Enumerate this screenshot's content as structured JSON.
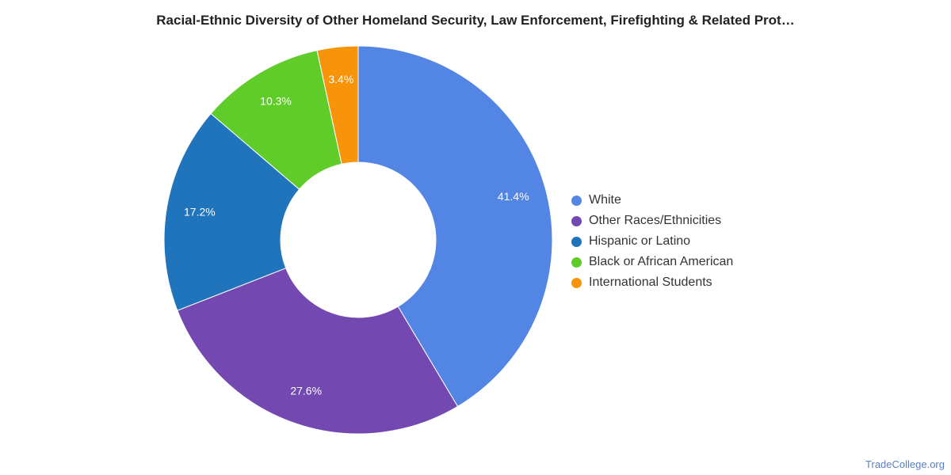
{
  "chart_data": {
    "type": "pie",
    "title": "Racial-Ethnic Diversity of Other Homeland Security, Law Enforcement, Firefighting & Related Prot…",
    "donut": true,
    "legend_position": "right",
    "series": [
      {
        "name": "White",
        "value": 41.4,
        "label": "41.4%",
        "color": "#5386e4"
      },
      {
        "name": "Other Races/Ethnicities",
        "value": 27.6,
        "label": "27.6%",
        "color": "#7348b0"
      },
      {
        "name": "Hispanic or Latino",
        "value": 17.2,
        "label": "17.2%",
        "color": "#1f74bb"
      },
      {
        "name": "Black or African American",
        "value": 10.3,
        "label": "10.3%",
        "color": "#5fcc2a"
      },
      {
        "name": "International Students",
        "value": 3.4,
        "label": "3.4%",
        "color": "#f7940a"
      }
    ]
  },
  "source_label": "TradeCollege.org"
}
